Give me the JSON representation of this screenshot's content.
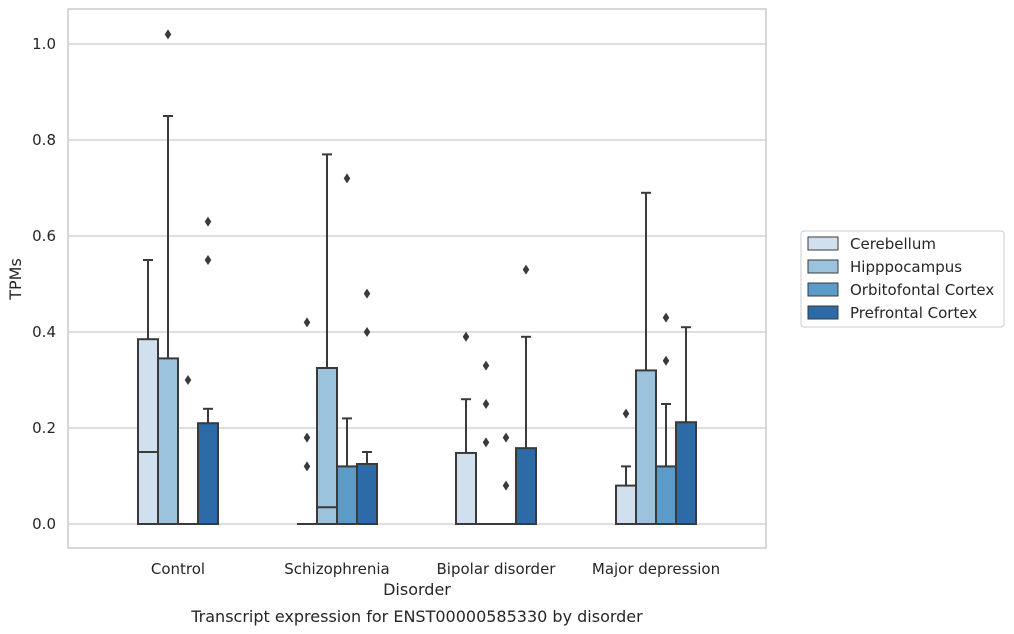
{
  "chart_data": {
    "type": "box",
    "xlabel": "Disorder",
    "ylabel": "TPMs",
    "caption": "Transcript expression for ENST00000585330 by disorder",
    "ylim": [
      -0.05,
      1.07
    ],
    "yticks": [
      "0.0",
      "0.2",
      "0.4",
      "0.6",
      "0.8",
      "1.0"
    ],
    "ytick_values": [
      0.0,
      0.2,
      0.4,
      0.6,
      0.8,
      1.0
    ],
    "grid": "horizontal",
    "legend_position": "right",
    "categories": [
      "Control",
      "Schizophrenia",
      "Bipolar disorder",
      "Major depression"
    ],
    "series": [
      {
        "name": "Cerebellum",
        "color": "#d0e0ef",
        "boxes": [
          {
            "whisker_low": 0.0,
            "q1": 0.0,
            "median": 0.15,
            "q3": 0.385,
            "whisker_high": 0.55,
            "outliers": []
          },
          {
            "whisker_low": 0.0,
            "q1": 0.0,
            "median": 0.0,
            "q3": 0.0,
            "whisker_high": 0.0,
            "outliers": [
              0.42,
              0.18,
              0.12
            ]
          },
          {
            "whisker_low": 0.0,
            "q1": 0.0,
            "median": 0.0,
            "q3": 0.148,
            "whisker_high": 0.26,
            "outliers": [
              0.39
            ]
          },
          {
            "whisker_low": 0.0,
            "q1": 0.0,
            "median": 0.0,
            "q3": 0.08,
            "whisker_high": 0.12,
            "outliers": [
              0.23
            ]
          }
        ]
      },
      {
        "name": "Hipppocampus",
        "color": "#9cc3de",
        "boxes": [
          {
            "whisker_low": 0.0,
            "q1": 0.0,
            "median": 0.0,
            "q3": 0.345,
            "whisker_high": 0.85,
            "outliers": [
              1.02
            ]
          },
          {
            "whisker_low": 0.0,
            "q1": 0.0,
            "median": 0.035,
            "q3": 0.325,
            "whisker_high": 0.77,
            "outliers": []
          },
          {
            "whisker_low": 0.0,
            "q1": 0.0,
            "median": 0.0,
            "q3": 0.0,
            "whisker_high": 0.0,
            "outliers": [
              0.33,
              0.25,
              0.17
            ]
          },
          {
            "whisker_low": 0.0,
            "q1": 0.0,
            "median": 0.0,
            "q3": 0.32,
            "whisker_high": 0.69,
            "outliers": []
          }
        ]
      },
      {
        "name": "Orbitofontal Cortex",
        "color": "#5b9bc9",
        "boxes": [
          {
            "whisker_low": 0.0,
            "q1": 0.0,
            "median": 0.0,
            "q3": 0.0,
            "whisker_high": 0.0,
            "outliers": [
              0.3
            ]
          },
          {
            "whisker_low": 0.0,
            "q1": 0.0,
            "median": 0.0,
            "q3": 0.12,
            "whisker_high": 0.22,
            "outliers": [
              0.72
            ]
          },
          {
            "whisker_low": 0.0,
            "q1": 0.0,
            "median": 0.0,
            "q3": 0.0,
            "whisker_high": 0.0,
            "outliers": [
              0.18,
              0.08
            ]
          },
          {
            "whisker_low": 0.0,
            "q1": 0.0,
            "median": 0.0,
            "q3": 0.12,
            "whisker_high": 0.25,
            "outliers": [
              0.43,
              0.34
            ]
          }
        ]
      },
      {
        "name": "Prefrontal Cortex",
        "color": "#2d6aa8",
        "boxes": [
          {
            "whisker_low": 0.0,
            "q1": 0.0,
            "median": 0.0,
            "q3": 0.21,
            "whisker_high": 0.24,
            "outliers": [
              0.63,
              0.55
            ]
          },
          {
            "whisker_low": 0.0,
            "q1": 0.0,
            "median": 0.0,
            "q3": 0.125,
            "whisker_high": 0.15,
            "outliers": [
              0.48,
              0.4
            ]
          },
          {
            "whisker_low": 0.0,
            "q1": 0.0,
            "median": 0.0,
            "q3": 0.158,
            "whisker_high": 0.39,
            "outliers": [
              0.53
            ]
          },
          {
            "whisker_low": 0.0,
            "q1": 0.0,
            "median": 0.0,
            "q3": 0.212,
            "whisker_high": 0.41,
            "outliers": []
          }
        ]
      }
    ]
  }
}
